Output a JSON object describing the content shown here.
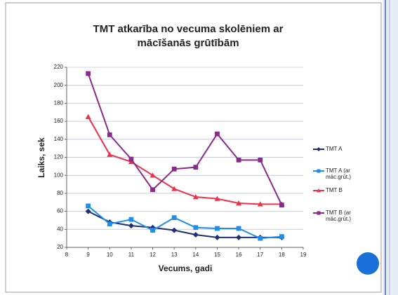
{
  "chart_data": {
    "type": "line",
    "title": [
      "TMT atkarība no vecuma skolēniem ar",
      "mācīšanās grūtībām"
    ],
    "xlabel": "Vecums, gadi",
    "ylabel": "Laiks, sek",
    "x": [
      9,
      10,
      11,
      12,
      13,
      14,
      15,
      16,
      17,
      18
    ],
    "series": [
      {
        "name": "TMT A",
        "color": "#1f2f7a",
        "marker": "diamond",
        "values": [
          60,
          48,
          44,
          42,
          39,
          34,
          31,
          31,
          31,
          31
        ]
      },
      {
        "name": "TMT A (ar māc.grūt.)",
        "color": "#1e8ee8",
        "marker": "square",
        "values": [
          66,
          46,
          51,
          39,
          53,
          42,
          41,
          41,
          30,
          32
        ]
      },
      {
        "name": "TMT B",
        "color": "#f0304a",
        "marker": "triangle",
        "values": [
          165,
          123,
          115,
          100,
          85,
          76,
          74,
          69,
          68,
          68
        ]
      },
      {
        "name": "TMT B (ar māc.grūt.)",
        "color": "#8a2a8c",
        "marker": "square",
        "values": [
          213,
          145,
          118,
          84,
          107,
          109,
          146,
          117,
          117,
          67
        ]
      }
    ],
    "xlim": [
      8,
      19
    ],
    "xticks": [
      8,
      9,
      10,
      11,
      12,
      13,
      14,
      15,
      16,
      17,
      18,
      19
    ],
    "ylim": [
      20,
      220
    ],
    "yticks": [
      20,
      40,
      60,
      80,
      100,
      120,
      140,
      160,
      180,
      200,
      220
    ],
    "grid": true,
    "legend": "right"
  }
}
